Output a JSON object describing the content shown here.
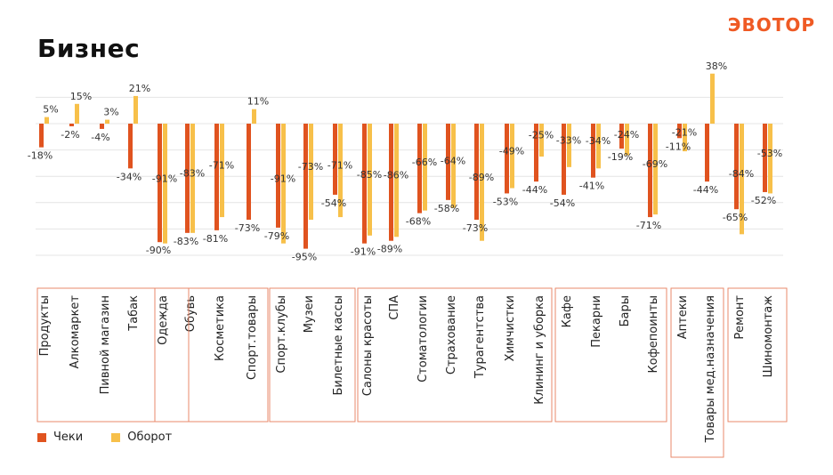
{
  "header": {
    "title": "Бизнес",
    "logo": "ЭВОТОР"
  },
  "colors": {
    "checks": "#e0531f",
    "turnover": "#f7c04a",
    "group_border": "#e98a6b",
    "grid": "#e4e4e4",
    "logo": "#ef5a24"
  },
  "legend": [
    {
      "label": "Чеки",
      "color": "#e0531f"
    },
    {
      "label": "Оборот",
      "color": "#f7c04a"
    }
  ],
  "chart_data": {
    "type": "bar",
    "title": "Бизнес",
    "xlabel": "",
    "ylabel": "",
    "ylim": [
      -100,
      40
    ],
    "grid": true,
    "legend_position": "bottom-left",
    "categories": [
      "Продукты",
      "Алкомаркет",
      "Пивной магазин",
      "Табак",
      "Одежда",
      "Обувь",
      "Косметика",
      "Спорт.товары",
      "Спорт.клубы",
      "Музеи",
      "Билетные кассы",
      "Салоны красоты",
      "СПА",
      "Стоматологии",
      "Страхование",
      "Турагентства",
      "Химчистки",
      "Клининг и уборка",
      "Кафе",
      "Пекарни",
      "Бары",
      "Кофепоинты",
      "Аптеки",
      "Товары мед.назначения",
      "Ремонт",
      "Шиномонтаж"
    ],
    "series": [
      {
        "name": "Чеки",
        "values": [
          -18,
          -2,
          -4,
          -34,
          -90,
          -83,
          -81,
          -73,
          -79,
          -95,
          -54,
          -91,
          -89,
          -68,
          -58,
          -73,
          -53,
          -44,
          -54,
          -41,
          -19,
          -71,
          -11,
          -44,
          -65,
          -52
        ],
        "labels": [
          "-18%",
          "-2%",
          "-4%",
          "-34%",
          "-90%",
          "-83%",
          "-81%",
          "-73%",
          "-79%",
          "-95%",
          "-54%",
          "-91%",
          "-89%",
          "-68%",
          "-58%",
          "-73%",
          "-53%",
          "-44%",
          "-54%",
          "-41%",
          "-19%",
          "-71%",
          "-11%",
          "-44%",
          "-65%",
          "-52%"
        ]
      },
      {
        "name": "Оборот",
        "values": [
          5,
          15,
          3,
          21,
          -91,
          -83,
          -71,
          11,
          -91,
          -73,
          -71,
          -85,
          -86,
          -66,
          -64,
          -89,
          -49,
          -25,
          -33,
          -34,
          -24,
          -69,
          -21,
          38,
          -84,
          -53
        ],
        "labels": [
          "5%",
          "15%",
          "3%",
          "21%",
          "-91%",
          "-83%",
          "-71%",
          "11%",
          "-91%",
          "-73%",
          "-71%",
          "-85%",
          "-86%",
          "-66%",
          "-64%",
          "-89%",
          "-49%",
          "-25%",
          "-33%",
          "-34%",
          "-24%",
          "-69%",
          "-21%",
          "38%",
          "-84%",
          "-53%"
        ]
      }
    ],
    "groups": [
      {
        "members": [
          0,
          1,
          2,
          3
        ]
      },
      {
        "members": [
          4,
          5,
          6,
          7
        ]
      },
      {
        "members": [
          8,
          9,
          10
        ]
      },
      {
        "members": [
          11,
          12,
          13,
          14,
          15,
          16,
          17
        ]
      },
      {
        "members": [
          18,
          19,
          20,
          21
        ]
      },
      {
        "members": [
          22,
          23
        ]
      },
      {
        "members": [
          24,
          25
        ]
      }
    ]
  }
}
